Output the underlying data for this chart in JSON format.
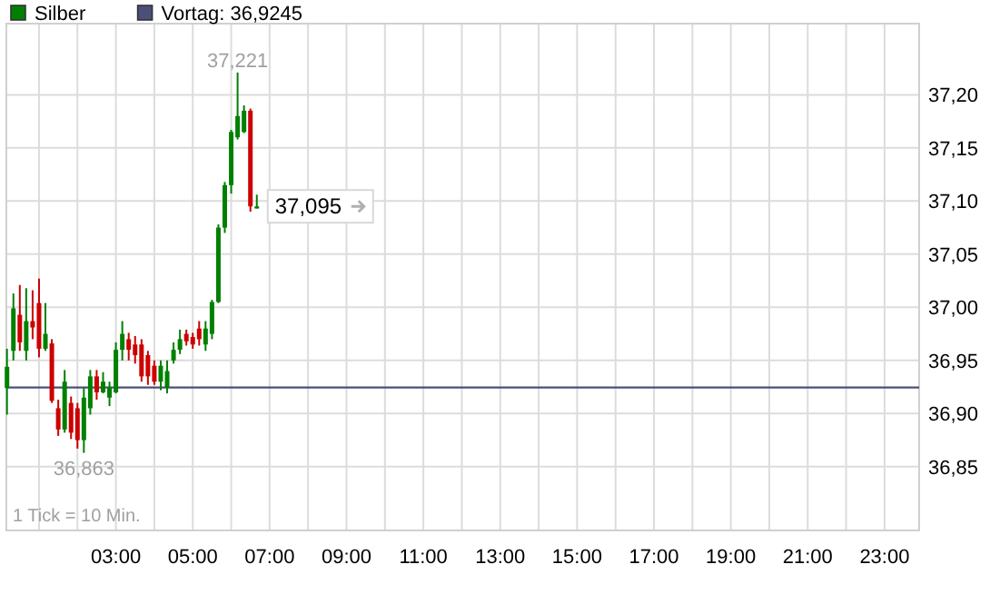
{
  "chart_data": {
    "type": "candlestick",
    "xlim": [
      0.15,
      23.9
    ],
    "ylim": [
      36.79,
      37.267
    ],
    "x": [
      0.1667,
      0.3333,
      0.5,
      0.6667,
      0.8333,
      1,
      1.1667,
      1.3333,
      1.5,
      1.6667,
      1.8333,
      2,
      2.1667,
      2.3333,
      2.5,
      2.6667,
      2.8333,
      3,
      3.1667,
      3.3333,
      3.5,
      3.6667,
      3.8333,
      4,
      4.1667,
      4.3333,
      4.5,
      4.6667,
      4.8333,
      5,
      5.1667,
      5.3333,
      5.5,
      5.6667,
      5.8333,
      6,
      6.1667,
      6.3333,
      6.5,
      6.6667
    ],
    "series": [
      {
        "name": "Silber",
        "color": "#008000",
        "ohlc": [
          [
            36.924,
            36.961,
            36.899,
            36.944
          ],
          [
            36.959,
            37.013,
            36.95,
            36.999
          ],
          [
            36.993,
            37.021,
            36.959,
            36.967
          ],
          [
            36.959,
            37.018,
            36.95,
            36.987
          ],
          [
            36.987,
            37.016,
            36.97,
            36.981
          ],
          [
            37.004,
            37.027,
            36.953,
            36.961
          ],
          [
            36.961,
            37.004,
            36.959,
            36.975
          ],
          [
            36.966,
            36.97,
            36.91,
            36.912
          ],
          [
            36.905,
            36.913,
            36.879,
            36.885
          ],
          [
            36.885,
            36.941,
            36.882,
            36.93
          ],
          [
            36.91,
            36.916,
            36.876,
            36.882
          ],
          [
            36.905,
            36.91,
            36.867,
            36.875
          ],
          [
            36.875,
            36.924,
            36.863,
            36.915
          ],
          [
            36.905,
            36.941,
            36.899,
            36.935
          ],
          [
            36.935,
            36.941,
            36.913,
            36.92
          ],
          [
            36.92,
            36.939,
            36.919,
            36.93
          ],
          [
            36.915,
            36.93,
            36.907,
            36.925
          ],
          [
            36.92,
            36.967,
            36.919,
            36.96
          ],
          [
            36.96,
            36.987,
            36.95,
            36.975
          ],
          [
            36.97,
            36.976,
            36.95,
            36.96
          ],
          [
            36.965,
            36.973,
            36.947,
            36.955
          ],
          [
            36.965,
            36.97,
            36.93,
            36.935
          ],
          [
            36.955,
            36.959,
            36.927,
            36.935
          ],
          [
            36.945,
            36.95,
            36.927,
            36.93
          ],
          [
            36.93,
            36.95,
            36.922,
            36.945
          ],
          [
            36.925,
            36.95,
            36.919,
            36.94
          ],
          [
            36.95,
            36.967,
            36.947,
            36.96
          ],
          [
            36.96,
            36.979,
            36.956,
            36.97
          ],
          [
            36.975,
            36.979,
            36.964,
            36.968
          ],
          [
            36.972,
            36.976,
            36.961,
            36.965
          ],
          [
            36.98,
            36.987,
            36.964,
            36.97
          ],
          [
            36.965,
            36.987,
            36.959,
            36.98
          ],
          [
            36.975,
            37.007,
            36.97,
            37.005
          ],
          [
            37.005,
            37.078,
            37.004,
            37.075
          ],
          [
            37.075,
            37.118,
            37.07,
            37.115
          ],
          [
            37.115,
            37.167,
            37.107,
            37.165
          ],
          [
            37.16,
            37.221,
            37.158,
            37.18
          ],
          [
            37.165,
            37.19,
            37.164,
            37.185
          ],
          [
            37.185,
            37.187,
            37.09,
            37.095
          ],
          [
            37.093,
            37.106,
            37.093,
            37.095
          ]
        ],
        "colors": [
          "#008000",
          "#008000",
          "#cc0000",
          "#008000",
          "#cc0000",
          "#cc0000",
          "#008000",
          "#cc0000",
          "#cc0000",
          "#008000",
          "#cc0000",
          "#cc0000",
          "#008000",
          "#008000",
          "#cc0000",
          "#008000",
          "#008000",
          "#008000",
          "#008000",
          "#cc0000",
          "#cc0000",
          "#cc0000",
          "#cc0000",
          "#cc0000",
          "#008000",
          "#008000",
          "#008000",
          "#008000",
          "#cc0000",
          "#cc0000",
          "#cc0000",
          "#008000",
          "#008000",
          "#008000",
          "#008000",
          "#008000",
          "#008000",
          "#008000",
          "#cc0000",
          "#008000"
        ]
      }
    ],
    "xticks": [
      {
        "value": 1,
        "label": null
      },
      {
        "value": 2,
        "label": null
      },
      {
        "value": 3,
        "label": "03:00"
      },
      {
        "value": 4,
        "label": null
      },
      {
        "value": 5,
        "label": "05:00"
      },
      {
        "value": 6,
        "label": null
      },
      {
        "value": 7,
        "label": "07:00"
      },
      {
        "value": 8,
        "label": null
      },
      {
        "value": 9,
        "label": "09:00"
      },
      {
        "value": 10,
        "label": null
      },
      {
        "value": 11,
        "label": "11:00"
      },
      {
        "value": 12,
        "label": null
      },
      {
        "value": 13,
        "label": "13:00"
      },
      {
        "value": 14,
        "label": null
      },
      {
        "value": 15,
        "label": "15:00"
      },
      {
        "value": 16,
        "label": null
      },
      {
        "value": 17,
        "label": "17:00"
      },
      {
        "value": 18,
        "label": null
      },
      {
        "value": 19,
        "label": "19:00"
      },
      {
        "value": 20,
        "label": null
      },
      {
        "value": 21,
        "label": "21:00"
      },
      {
        "value": 22,
        "label": null
      },
      {
        "value": 23,
        "label": "23:00"
      }
    ],
    "yticks": [
      {
        "value": 36.85,
        "label": "36,85"
      },
      {
        "value": 36.9,
        "label": "36,90"
      },
      {
        "value": 36.95,
        "label": "36,95"
      },
      {
        "value": 37,
        "label": "37,00"
      },
      {
        "value": 37.05,
        "label": "37,05"
      },
      {
        "value": 37.1,
        "label": "37,10"
      },
      {
        "value": 37.15,
        "label": "37,15"
      },
      {
        "value": 37.2,
        "label": "37,20"
      }
    ],
    "grid": true,
    "legend": "top left",
    "ref_lines": [
      {
        "axis": "y",
        "value": 36.9245,
        "label": "Vortag: 36,9245",
        "color": "#4a5078"
      }
    ],
    "annotations": [
      {
        "text": "37,221",
        "x": 6.1667,
        "y": 37.221
      },
      {
        "text": "36,863",
        "x": 2.1667,
        "y": 36.863
      },
      {
        "text": "37,095",
        "x": 6.6667,
        "y": 37.095
      },
      "1 Tick = 10 Min."
    ]
  }
}
